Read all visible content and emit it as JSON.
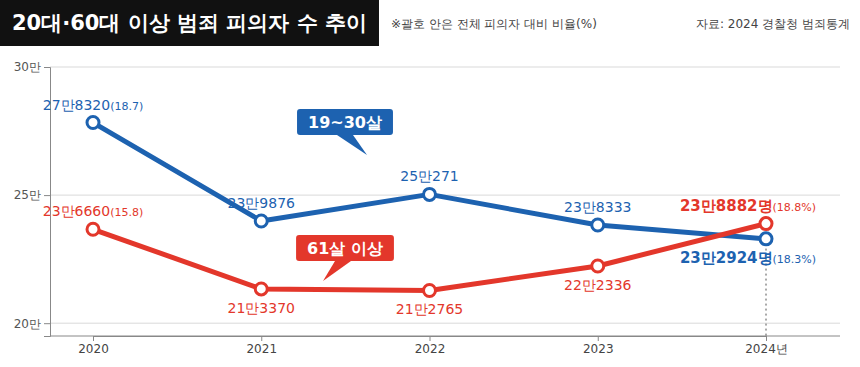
{
  "chart_data": {
    "type": "line",
    "title": "20대·60대 이상 범죄 피의자 수 추이",
    "subtitle": "※괄호 안은 전체 피의자 대비 비율(%)",
    "source": "자료: 2024 경찰청 범죄통계",
    "categories": [
      "2020",
      "2021",
      "2022",
      "2023",
      "2024년"
    ],
    "series": [
      {
        "name": "19~30살",
        "color": "#1d62b0",
        "values": [
          278320,
          239876,
          250271,
          238333,
          232924
        ],
        "value_labels": [
          "27만8320(18.7)",
          "23만9876",
          "25만271",
          "23만8333",
          "23만2924명(18.3%)"
        ]
      },
      {
        "name": "61살 이상",
        "color": "#e3372b",
        "values": [
          236660,
          213370,
          212765,
          222336,
          238882
        ],
        "value_labels": [
          "23만6660(15.8)",
          "21만3370",
          "21만2765",
          "22만2336",
          "23만8882명(18.8%)"
        ]
      }
    ],
    "ylim": [
      195000,
      300000
    ],
    "yticks": [
      {
        "value": 200000,
        "label": "20만"
      },
      {
        "value": 250000,
        "label": "25만"
      },
      {
        "value": 300000,
        "label": "30만"
      }
    ],
    "grid": true,
    "data_labels": true,
    "marker": "circle"
  }
}
